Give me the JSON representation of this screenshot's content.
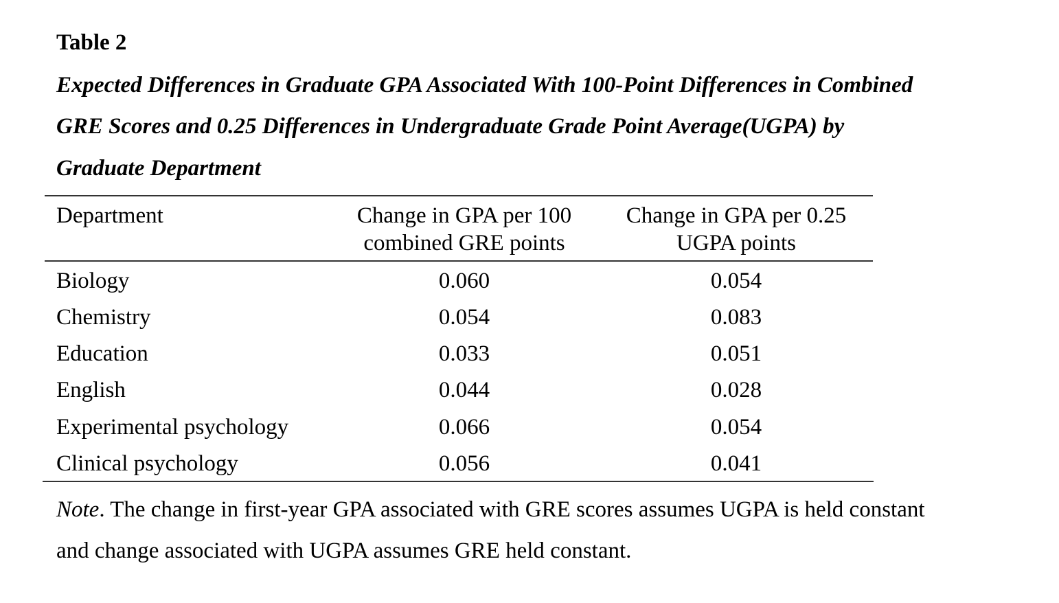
{
  "table": {
    "label": "Table 2",
    "caption_lines": [
      "Expected Differences in Graduate GPA Associated With 100-Point Differences in Combined",
      "GRE Scores and 0.25 Differences in Undergraduate Grade Point Average(UGPA) by",
      "Graduate Department"
    ],
    "columns": {
      "department": "Department",
      "gre": [
        "Change in GPA per 100",
        "combined GRE points"
      ],
      "ugpa": [
        "Change in GPA per 0.25",
        "UGPA points"
      ]
    },
    "rows": [
      {
        "department": "Biology",
        "gre": "0.060",
        "ugpa": "0.054"
      },
      {
        "department": "Chemistry",
        "gre": "0.054",
        "ugpa": "0.083"
      },
      {
        "department": "Education",
        "gre": "0.033",
        "ugpa": "0.051"
      },
      {
        "department": "English",
        "gre": "0.044",
        "ugpa": "0.028"
      },
      {
        "department": "Experimental psychology",
        "gre": "0.066",
        "ugpa": "0.054"
      },
      {
        "department": "Clinical psychology",
        "gre": "0.056",
        "ugpa": "0.041"
      }
    ]
  },
  "note": {
    "label": "Note",
    "line1": "The change in first-year GPA associated with GRE scores assumes UGPA is held constant",
    "line2": "and change associated with UGPA assumes GRE held constant."
  }
}
